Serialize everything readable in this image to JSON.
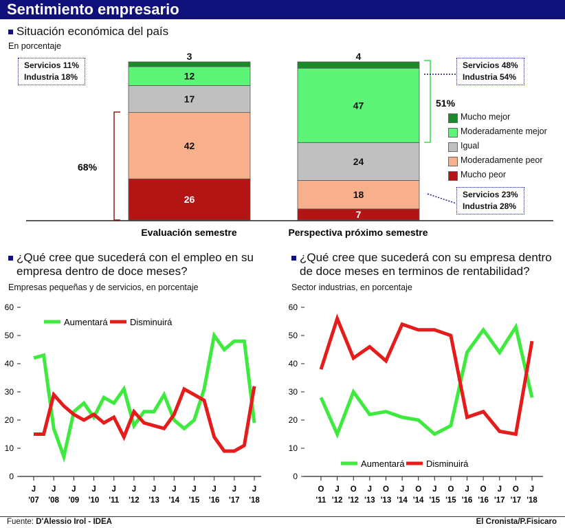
{
  "header": {
    "title": "Sentimiento empresario"
  },
  "section1": {
    "title": "Situación económica del país",
    "subtitle": "En porcentaje",
    "bars": [
      {
        "label": "Evaluación semestre",
        "values": {
          "mucho_peor": 26,
          "moderadamente_peor": 42,
          "igual": 17,
          "moderadamente_mejor": 12,
          "mucho_mejor": 3
        }
      },
      {
        "label": "Perspectiva próximo semestre",
        "values": {
          "mucho_peor": 7,
          "moderadamente_peor": 18,
          "igual": 24,
          "moderadamente_mejor": 47,
          "mucho_mejor": 4
        }
      }
    ],
    "legend": [
      {
        "key": "mucho_mejor",
        "label": "Mucho mejor",
        "color": "#1a8a2a"
      },
      {
        "key": "moderadamente_mejor",
        "label": "Moderadamente mejor",
        "color": "#5cf577"
      },
      {
        "key": "igual",
        "label": "Igual",
        "color": "#c0c0c0"
      },
      {
        "key": "moderadamente_peor",
        "label": "Moderadamente peor",
        "color": "#f8b08c"
      },
      {
        "key": "mucho_peor",
        "label": "Mucho peor",
        "color": "#b31414"
      }
    ],
    "bracket_left_label": "68%",
    "bracket_right_label": "51%",
    "callout_left": {
      "line1": "Servicios 11%",
      "line2": "Industria 18%"
    },
    "callout_right_top": {
      "line1": "Servicios 48%",
      "line2": "Industria 54%"
    },
    "callout_right_bottom": {
      "line1": "Servicios 23%",
      "line2": "Industria 28%"
    }
  },
  "section2": {
    "title_line1": "¿Qué cree que sucederá con el empleo en su",
    "title_line2": "empresa dentro de doce meses?",
    "subtitle": "Empresas pequeñas y de servicios, en porcentaje"
  },
  "section3": {
    "title_line1": "¿Qué cree que sucederá con su empresa dentro",
    "title_line2": "de doce meses en terminos de rentabilidad?",
    "subtitle": "Sector industrias, en porcentaje"
  },
  "chart_data": [
    {
      "type": "bar",
      "stacked": true,
      "categories": [
        "Evaluación semestre",
        "Perspectiva próximo semestre"
      ],
      "series": [
        {
          "name": "Mucho peor",
          "values": [
            26,
            7
          ]
        },
        {
          "name": "Moderadamente peor",
          "values": [
            42,
            18
          ]
        },
        {
          "name": "Igual",
          "values": [
            17,
            24
          ]
        },
        {
          "name": "Moderadamente mejor",
          "values": [
            12,
            47
          ]
        },
        {
          "name": "Mucho mejor",
          "values": [
            3,
            4
          ]
        }
      ],
      "legend_position": "right"
    },
    {
      "type": "line",
      "ylim": [
        0,
        60
      ],
      "yticks": [
        0,
        10,
        20,
        30,
        40,
        50,
        60
      ],
      "xtick_letters": [
        "J",
        "J",
        "J",
        "J",
        "J",
        "J",
        "J",
        "J",
        "J",
        "J",
        "J",
        "J"
      ],
      "xtick_years": [
        "'07",
        "'08",
        "'09",
        "'10",
        "'11",
        "'12",
        "'13",
        "'14",
        "'15",
        "'16",
        "'17",
        "'18"
      ],
      "legend_position": "top-left",
      "grid": false,
      "series": [
        {
          "name": "Aumentará",
          "color": "#3dea3d",
          "values": [
            42,
            43,
            17,
            7,
            23,
            26,
            21,
            28,
            26,
            31,
            18,
            23,
            23,
            29,
            20,
            17,
            20,
            31,
            50,
            45,
            48,
            48,
            19
          ]
        },
        {
          "name": "Disminuirá",
          "color": "#e51c1c",
          "values": [
            15,
            15,
            29,
            25,
            22,
            20,
            22,
            19,
            21,
            14,
            23,
            19,
            18,
            17,
            22,
            31,
            29,
            27,
            14,
            9,
            9,
            11,
            32
          ]
        }
      ]
    },
    {
      "type": "line",
      "ylim": [
        0,
        60
      ],
      "yticks": [
        0,
        10,
        20,
        30,
        40,
        50,
        60
      ],
      "xtick_letters": [
        "O",
        "J",
        "O",
        "J",
        "O",
        "J",
        "O",
        "J",
        "O",
        "J",
        "O",
        "J",
        "O",
        "J"
      ],
      "xtick_years": [
        "'11",
        "'12",
        "'12",
        "'13",
        "'13",
        "'14",
        "'14",
        "'15",
        "'15",
        "'16",
        "'16",
        "'17",
        "'17",
        "'18"
      ],
      "legend_position": "bottom-center",
      "grid": false,
      "series": [
        {
          "name": "Aumentará",
          "color": "#3dea3d",
          "values": [
            28,
            15,
            30,
            22,
            23,
            21,
            20,
            15,
            18,
            44,
            52,
            44,
            53,
            28
          ]
        },
        {
          "name": "Disminuirá",
          "color": "#e51c1c",
          "values": [
            38,
            56,
            42,
            46,
            41,
            54,
            52,
            52,
            50,
            21,
            23,
            16,
            15,
            48
          ]
        }
      ]
    }
  ],
  "footer": {
    "source_prefix": "Fuente: ",
    "source": "D'Alessio Irol - IDEA",
    "credit": "El Cronista/P.Fisicaro"
  }
}
